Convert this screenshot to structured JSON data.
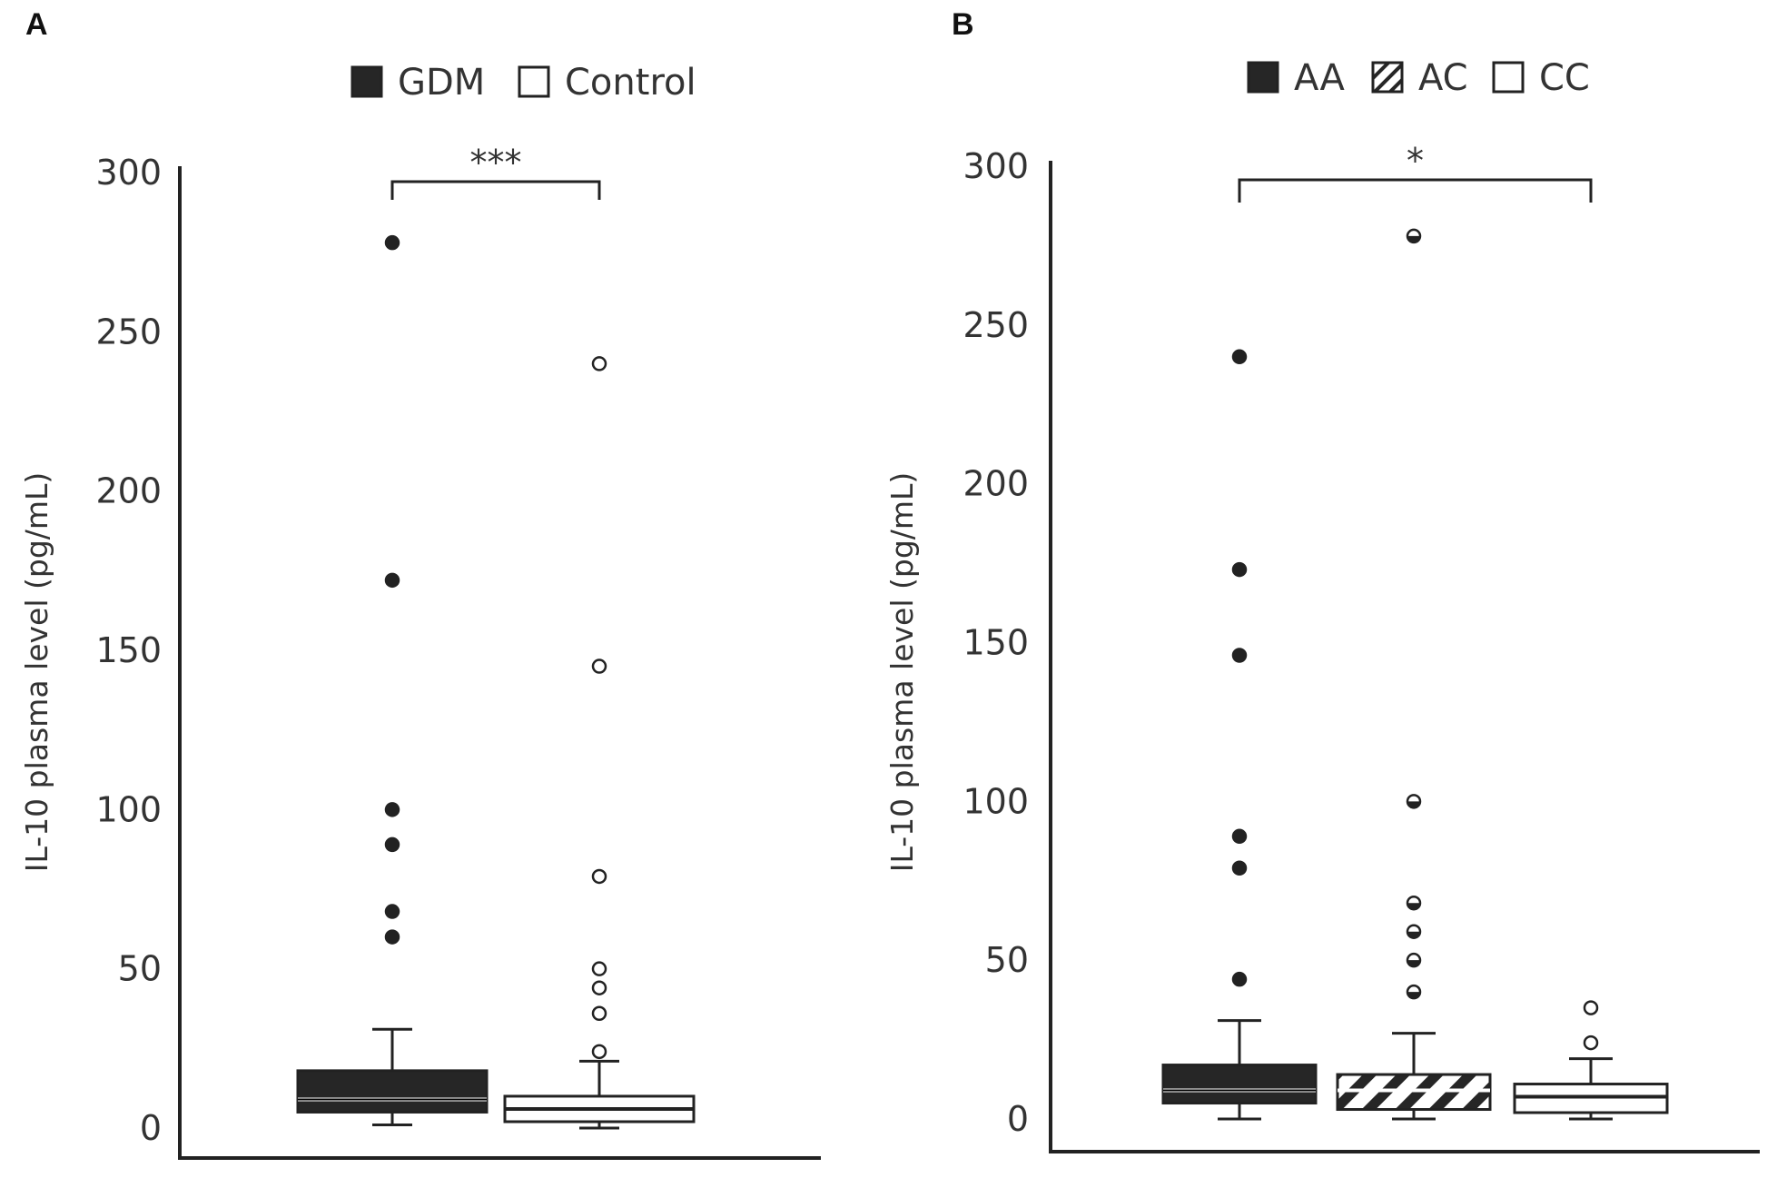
{
  "colors": {
    "gdm": "#262626",
    "control": "#ffffff",
    "aa": "#262626",
    "ac_hatch": "#262626",
    "cc": "#ffffff",
    "axis": "#222222",
    "text": "#333333"
  },
  "chart_data": [
    {
      "type": "boxplot",
      "panel": "A",
      "ylabel": "IL-10 plasma level (pg/mL)",
      "ylim": [
        0,
        300
      ],
      "yticks": [
        0,
        50,
        100,
        150,
        200,
        250,
        300
      ],
      "yticklabels": [
        "0",
        "50",
        "100",
        "150",
        "200",
        "250",
        "300"
      ],
      "legend": [
        {
          "label": "GDM",
          "style": "solid"
        },
        {
          "label": "Control",
          "style": "open"
        }
      ],
      "groups": [
        {
          "name": "GDM",
          "style": "solid",
          "whisker_low": 1,
          "q1": 5,
          "median": 9,
          "q3": 18,
          "whisker_high": 31,
          "outliers": [
            60,
            68,
            89,
            100,
            278,
            172
          ]
        },
        {
          "name": "Control",
          "style": "open",
          "whisker_low": 0,
          "q1": 2,
          "median": 6,
          "q3": 10,
          "whisker_high": 21,
          "outliers": [
            24,
            36,
            44,
            50,
            79,
            145,
            240
          ]
        }
      ],
      "significance": {
        "label": "***",
        "from_group": 0,
        "to_group": 1,
        "y": 300
      }
    },
    {
      "type": "boxplot",
      "panel": "B",
      "ylabel": "IL-10 plasma level (pg/mL)",
      "ylim": [
        0,
        300
      ],
      "yticks": [
        0,
        50,
        100,
        150,
        200,
        250,
        300
      ],
      "yticklabels": [
        "0",
        "50",
        "100",
        "150",
        "200",
        "250",
        "300"
      ],
      "legend": [
        {
          "label": "AA",
          "style": "solid"
        },
        {
          "label": "AC",
          "style": "hatched"
        },
        {
          "label": "CC",
          "style": "open"
        }
      ],
      "groups": [
        {
          "name": "AA",
          "style": "solid",
          "whisker_low": 0,
          "q1": 5,
          "median": 9,
          "q3": 17,
          "whisker_high": 31,
          "outliers": [
            44,
            79,
            89,
            146,
            173,
            240
          ]
        },
        {
          "name": "AC",
          "style": "hatched",
          "whisker_low": 0,
          "q1": 3,
          "median": 9,
          "q3": 14,
          "whisker_high": 27,
          "outliers": [
            40,
            50,
            59,
            68,
            100,
            278
          ]
        },
        {
          "name": "CC",
          "style": "open",
          "whisker_low": 0,
          "q1": 2,
          "median": 7,
          "q3": 11,
          "whisker_high": 19,
          "outliers": [
            24,
            35
          ]
        }
      ],
      "significance": {
        "label": "*",
        "from_group": 0,
        "to_group": 2,
        "y": 300
      }
    }
  ]
}
